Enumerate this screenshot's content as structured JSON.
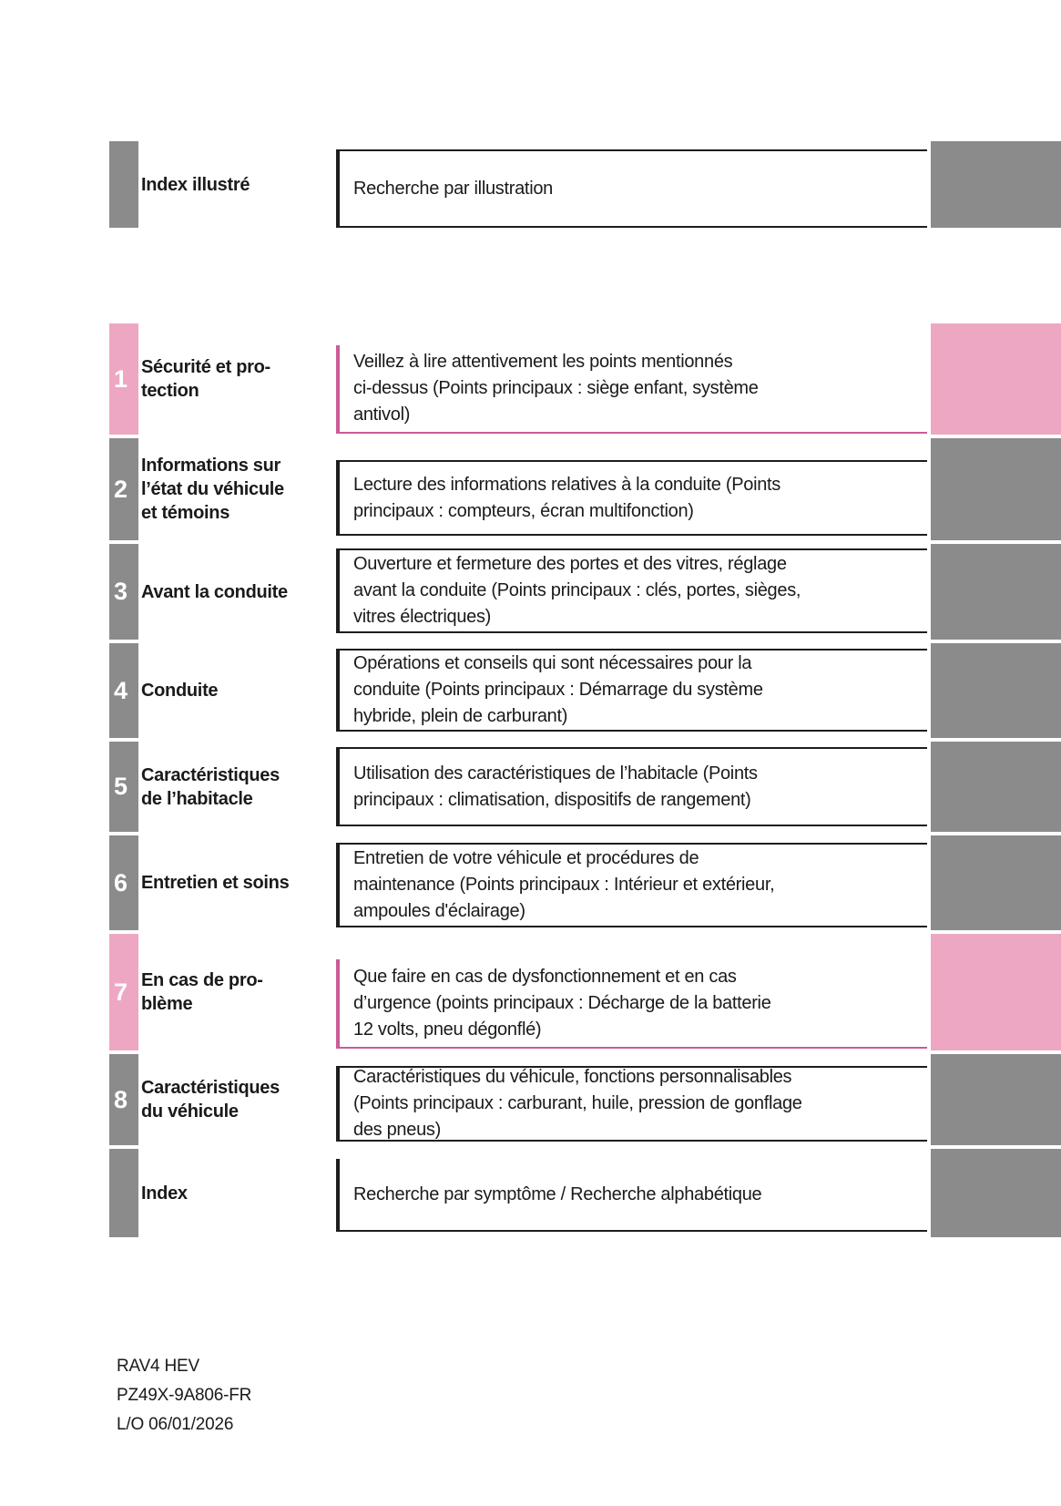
{
  "rows": [
    {
      "id": "index-illustre",
      "number": "",
      "title": "Index illustré",
      "description": "Recherche par illustration",
      "accent": "gray"
    },
    {
      "id": "chapter-1",
      "number": "1",
      "title": "Sécurité et pro-\ntection",
      "description": "Veillez à lire attentivement les points mentionnés\nci-dessus (Points principaux : siège enfant, système\nantivol)",
      "accent": "pink"
    },
    {
      "id": "chapter-2",
      "number": "2",
      "title": "Informations sur\nl’état du véhicule\net témoins",
      "description": "Lecture des informations relatives à la conduite (Points\nprincipaux : compteurs, écran multifonction)",
      "accent": "gray"
    },
    {
      "id": "chapter-3",
      "number": "3",
      "title": "Avant la conduite",
      "description": "Ouverture et fermeture des portes et des vitres, réglage\navant la conduite (Points principaux : clés, portes, sièges,\nvitres électriques)",
      "accent": "gray"
    },
    {
      "id": "chapter-4",
      "number": "4",
      "title": "Conduite",
      "description": "Opérations et conseils qui sont nécessaires pour la\nconduite (Points principaux : Démarrage du système\nhybride, plein de carburant)",
      "accent": "gray"
    },
    {
      "id": "chapter-5",
      "number": "5",
      "title": "Caractéristiques\nde l’habitacle",
      "description": "Utilisation des caractéristiques de l’habitacle (Points\nprincipaux : climatisation, dispositifs de rangement)",
      "accent": "gray"
    },
    {
      "id": "chapter-6",
      "number": "6",
      "title": "Entretien et soins",
      "description": "Entretien de votre véhicule et procédures de\nmaintenance (Points principaux : Intérieur et extérieur,\nampoules d'éclairage)",
      "accent": "gray"
    },
    {
      "id": "chapter-7",
      "number": "7",
      "title": "En cas de pro-\nblème",
      "description": "Que faire en cas de dysfonctionnement et en cas\nd’urgence (points principaux : Décharge de la batterie\n12 volts, pneu dégonflé)",
      "accent": "pink"
    },
    {
      "id": "chapter-8",
      "number": "8",
      "title": "Caractéristiques\ndu véhicule",
      "description": "Caractéristiques du véhicule, fonctions personnalisables\n(Points principaux : carburant, huile, pression de gonflage\ndes pneus)",
      "accent": "gray"
    },
    {
      "id": "index",
      "number": "",
      "title": "Index",
      "description": "Recherche par symptôme / Recherche alphabétique",
      "accent": "gray"
    }
  ],
  "footer": {
    "model": "RAV4 HEV",
    "part_number": "PZ49X-9A806-FR",
    "layout_date": "L/O 06/01/2026"
  },
  "colors": {
    "pink_tab": "#eda7c3",
    "pink_border": "#ca5c95",
    "gray_tab": "#8b8b8b",
    "border_dark": "#1d1d1d",
    "text": "#1a1a1a"
  }
}
